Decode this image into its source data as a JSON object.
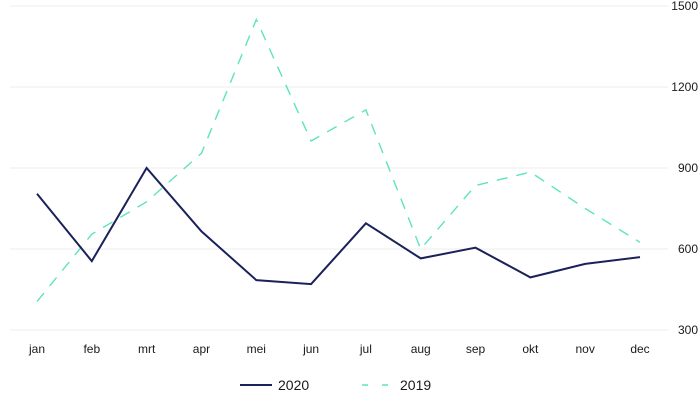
{
  "chart_data": {
    "type": "line",
    "categories": [
      "jan",
      "feb",
      "mrt",
      "apr",
      "mei",
      "jun",
      "jul",
      "aug",
      "sep",
      "okt",
      "nov",
      "dec"
    ],
    "series": [
      {
        "name": "2020",
        "values": [
          805,
          555,
          900,
          665,
          485,
          470,
          695,
          565,
          605,
          495,
          545,
          570
        ],
        "color": "#1b2159",
        "style": "solid"
      },
      {
        "name": "2019",
        "values": [
          405,
          655,
          775,
          955,
          1450,
          1000,
          1115,
          600,
          835,
          885,
          750,
          625
        ],
        "color": "#5ee3bf",
        "style": "dashed"
      }
    ],
    "yaxis_position": "right",
    "yticks": [
      300,
      600,
      900,
      1200,
      1500
    ],
    "ylim": [
      300,
      1500
    ],
    "grid": "horizontal",
    "legend_position": "bottom"
  }
}
